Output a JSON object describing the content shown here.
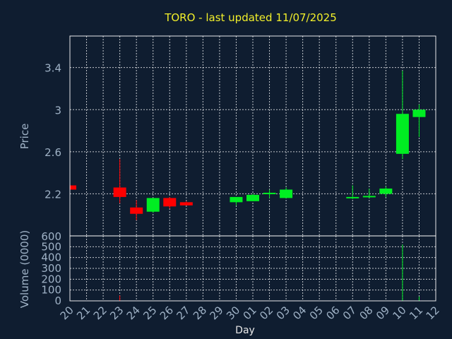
{
  "chart_data": {
    "type": "candlestick",
    "title": "TORO - last updated 11/07/2025",
    "xlabel": "Day",
    "colors": {
      "background": "#0f1d30",
      "title": "#f2ef2a",
      "axis_text": "#9fb2c6",
      "frame": "#ffffff",
      "grid": "#ffffff",
      "up": "#00ee22",
      "down": "#ff0000"
    },
    "x_tick_labels": [
      "20",
      "21",
      "22",
      "23",
      "24",
      "25",
      "26",
      "27",
      "28",
      "29",
      "30",
      "01",
      "02",
      "03",
      "04",
      "05",
      "06",
      "07",
      "08",
      "09",
      "10",
      "11",
      "12"
    ],
    "price_panel": {
      "ylabel": "Price",
      "ylim": [
        1.8,
        3.7
      ],
      "ticks": [
        2.2,
        2.6,
        3.0,
        3.4
      ],
      "tick_labels": [
        "2.2",
        "2.6",
        "3",
        "3.4"
      ],
      "grid": true
    },
    "volume_panel": {
      "ylabel": "Volume (0000)",
      "ylim": [
        0,
        600
      ],
      "ticks": [
        0,
        100,
        200,
        300,
        400,
        500,
        600
      ],
      "tick_labels": [
        "0",
        "100",
        "200",
        "300",
        "400",
        "500",
        "600"
      ],
      "grid": true
    },
    "candles": [
      {
        "day": "20",
        "open": 2.28,
        "high": 2.28,
        "low": 2.24,
        "close": 2.24,
        "volume": 0
      },
      {
        "day": "23",
        "open": 2.26,
        "high": 2.53,
        "low": 2.11,
        "close": 2.17,
        "volume": 50
      },
      {
        "day": "24",
        "open": 2.07,
        "high": 2.14,
        "low": 1.95,
        "close": 2.01,
        "volume": 3
      },
      {
        "day": "25",
        "open": 2.03,
        "high": 2.16,
        "low": 2.02,
        "close": 2.16,
        "volume": 3
      },
      {
        "day": "26",
        "open": 2.16,
        "high": 2.17,
        "low": 2.06,
        "close": 2.08,
        "volume": 3
      },
      {
        "day": "27",
        "open": 2.12,
        "high": 2.13,
        "low": 2.09,
        "close": 2.09,
        "volume": 2
      },
      {
        "day": "30",
        "open": 2.12,
        "high": 2.17,
        "low": 2.09,
        "close": 2.17,
        "volume": 2
      },
      {
        "day": "01",
        "open": 2.13,
        "high": 2.2,
        "low": 2.13,
        "close": 2.19,
        "volume": 2
      },
      {
        "day": "02",
        "open": 2.2,
        "high": 2.24,
        "low": 2.16,
        "close": 2.21,
        "volume": 1
      },
      {
        "day": "03",
        "open": 2.16,
        "high": 2.26,
        "low": 2.16,
        "close": 2.24,
        "volume": 2
      },
      {
        "day": "07",
        "open": 2.16,
        "high": 2.28,
        "low": 2.15,
        "close": 2.17,
        "volume": 1
      },
      {
        "day": "08",
        "open": 2.17,
        "high": 2.25,
        "low": 2.16,
        "close": 2.18,
        "volume": 1
      },
      {
        "day": "09",
        "open": 2.2,
        "high": 2.27,
        "low": 2.17,
        "close": 2.25,
        "volume": 2
      },
      {
        "day": "10",
        "open": 2.58,
        "high": 3.37,
        "low": 2.53,
        "close": 2.96,
        "volume": 520
      },
      {
        "day": "11",
        "open": 2.93,
        "high": 3.05,
        "low": 2.74,
        "close": 3.0,
        "volume": 40
      }
    ]
  }
}
